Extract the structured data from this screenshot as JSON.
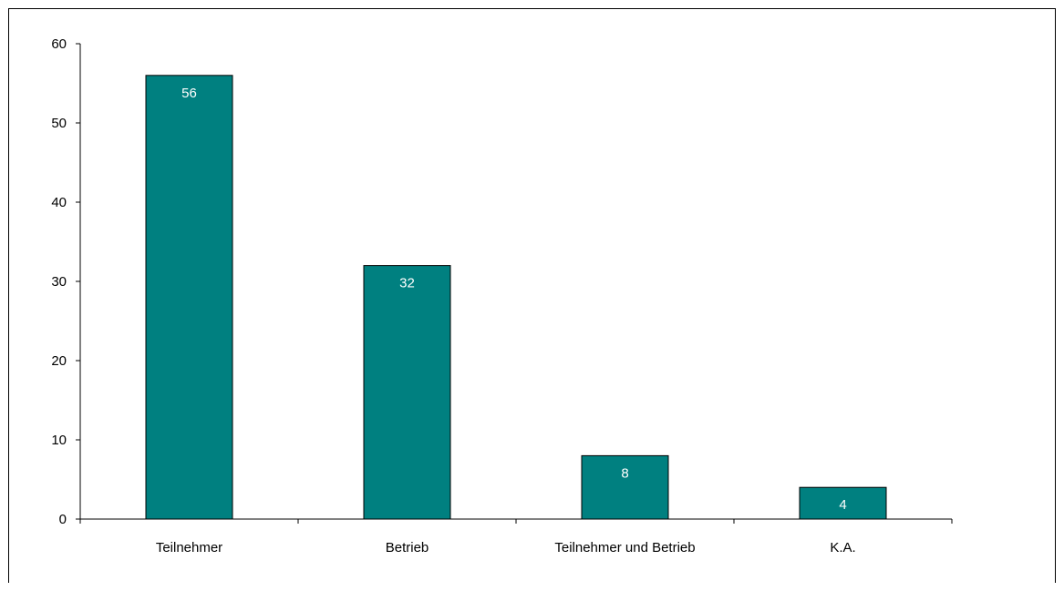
{
  "chart_data": {
    "type": "bar",
    "categories": [
      "Teilnehmer",
      "Betrieb",
      "Teilnehmer und Betrieb",
      "K.A."
    ],
    "values": [
      56,
      32,
      8,
      4
    ],
    "data_labels": [
      "56",
      "32",
      "8",
      "4"
    ],
    "ylim": [
      0,
      60
    ],
    "yticks": [
      0,
      10,
      20,
      30,
      40,
      50,
      60
    ],
    "grid": false,
    "legend": "none",
    "colors": {
      "bar": "#008080",
      "bar_border": "#000000",
      "data_label": "#ffffff",
      "axis": "#000000"
    }
  }
}
